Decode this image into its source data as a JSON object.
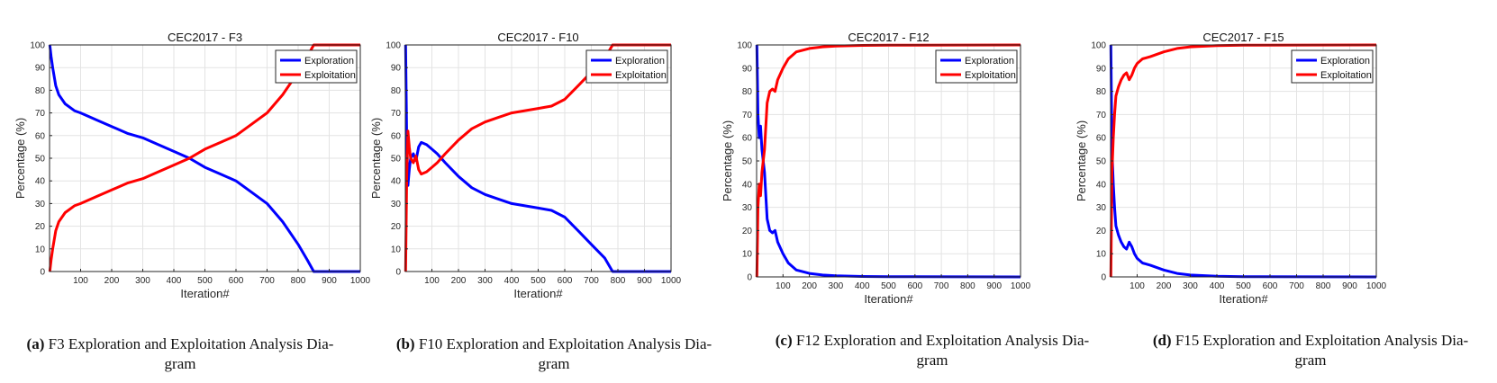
{
  "chart_data": [
    {
      "type": "line",
      "title": "CEC2017 - F3",
      "xlabel": "Iteration#",
      "ylabel": "Percentage (%)",
      "xlim": [
        0,
        1000
      ],
      "ylim": [
        0,
        100
      ],
      "xticks": [
        "100",
        "200",
        "300",
        "400",
        "500",
        "600",
        "700",
        "800",
        "900",
        "1000"
      ],
      "yticks": [
        "0",
        "10",
        "20",
        "30",
        "40",
        "50",
        "60",
        "70",
        "80",
        "90",
        "100"
      ],
      "grid": true,
      "legend_position": "top-right",
      "series": [
        {
          "name": "Exploration",
          "color": "#0000ff",
          "x": [
            1,
            5,
            10,
            20,
            30,
            50,
            80,
            100,
            150,
            200,
            250,
            300,
            350,
            400,
            450,
            500,
            550,
            600,
            650,
            700,
            750,
            800,
            830,
            850,
            900,
            1000
          ],
          "y": [
            100,
            95,
            90,
            82,
            78,
            74,
            71,
            70,
            67,
            64,
            61,
            59,
            56,
            53,
            50,
            46,
            43,
            40,
            35,
            30,
            22,
            12,
            5,
            0,
            0,
            0
          ]
        },
        {
          "name": "Exploitation",
          "color": "#ff0000",
          "x": [
            1,
            5,
            10,
            20,
            30,
            50,
            80,
            100,
            150,
            200,
            250,
            300,
            350,
            400,
            450,
            500,
            550,
            600,
            650,
            700,
            750,
            800,
            830,
            850,
            900,
            1000
          ],
          "y": [
            0,
            5,
            10,
            18,
            22,
            26,
            29,
            30,
            33,
            36,
            39,
            41,
            44,
            47,
            50,
            54,
            57,
            60,
            65,
            70,
            78,
            88,
            95,
            100,
            100,
            100
          ]
        }
      ]
    },
    {
      "type": "line",
      "title": "CEC2017 - F10",
      "xlabel": "Iteration#",
      "ylabel": "Percentage (%)",
      "xlim": [
        0,
        1000
      ],
      "ylim": [
        0,
        100
      ],
      "xticks": [
        "100",
        "200",
        "300",
        "400",
        "500",
        "600",
        "700",
        "800",
        "900",
        "1000"
      ],
      "yticks": [
        "0",
        "10",
        "20",
        "30",
        "40",
        "50",
        "60",
        "70",
        "80",
        "90",
        "100"
      ],
      "grid": true,
      "legend_position": "top-right",
      "series": [
        {
          "name": "Exploration",
          "color": "#0000ff",
          "x": [
            1,
            5,
            10,
            15,
            20,
            30,
            40,
            50,
            60,
            80,
            100,
            120,
            150,
            200,
            250,
            300,
            350,
            400,
            450,
            500,
            550,
            600,
            650,
            700,
            750,
            780,
            800,
            900,
            1000
          ],
          "y": [
            100,
            60,
            38,
            45,
            50,
            52,
            49,
            55,
            57,
            56,
            54,
            52,
            48,
            42,
            37,
            34,
            32,
            30,
            29,
            28,
            27,
            24,
            18,
            12,
            6,
            0,
            0,
            0,
            0
          ]
        },
        {
          "name": "Exploitation",
          "color": "#ff0000",
          "x": [
            1,
            5,
            10,
            15,
            20,
            30,
            40,
            50,
            60,
            80,
            100,
            120,
            150,
            200,
            250,
            300,
            350,
            400,
            450,
            500,
            550,
            600,
            650,
            700,
            750,
            780,
            800,
            900,
            1000
          ],
          "y": [
            0,
            40,
            62,
            55,
            50,
            48,
            51,
            45,
            43,
            44,
            46,
            48,
            52,
            58,
            63,
            66,
            68,
            70,
            71,
            72,
            73,
            76,
            82,
            88,
            94,
            100,
            100,
            100,
            100
          ]
        }
      ]
    },
    {
      "type": "line",
      "title": "CEC2017 - F12",
      "xlabel": "Iteration#",
      "ylabel": "Percentage (%)",
      "xlim": [
        0,
        1000
      ],
      "ylim": [
        0,
        100
      ],
      "xticks": [
        "100",
        "200",
        "300",
        "400",
        "500",
        "600",
        "700",
        "800",
        "900",
        "1000"
      ],
      "yticks": [
        "0",
        "10",
        "20",
        "30",
        "40",
        "50",
        "60",
        "70",
        "80",
        "90",
        "100"
      ],
      "grid": true,
      "legend_position": "top-right",
      "series": [
        {
          "name": "Exploration",
          "color": "#0000ff",
          "x": [
            1,
            5,
            10,
            15,
            20,
            30,
            40,
            50,
            60,
            70,
            80,
            100,
            120,
            150,
            200,
            250,
            300,
            400,
            500,
            1000
          ],
          "y": [
            100,
            70,
            60,
            65,
            55,
            45,
            25,
            20,
            19,
            20,
            15,
            10,
            6,
            3,
            1.5,
            0.8,
            0.5,
            0.2,
            0.1,
            0
          ]
        },
        {
          "name": "Exploitation",
          "color": "#ff0000",
          "x": [
            1,
            5,
            10,
            15,
            20,
            30,
            40,
            50,
            60,
            70,
            80,
            100,
            120,
            150,
            200,
            250,
            300,
            400,
            500,
            1000
          ],
          "y": [
            0,
            30,
            40,
            35,
            45,
            55,
            75,
            80,
            81,
            80,
            85,
            90,
            94,
            97,
            98.5,
            99.2,
            99.5,
            99.8,
            99.9,
            100
          ]
        }
      ]
    },
    {
      "type": "line",
      "title": "CEC2017 - F15",
      "xlabel": "Iteration#",
      "ylabel": "Percentage (%)",
      "xlim": [
        0,
        1000
      ],
      "ylim": [
        0,
        100
      ],
      "xticks": [
        "100",
        "200",
        "300",
        "400",
        "500",
        "600",
        "700",
        "800",
        "900",
        "1000"
      ],
      "yticks": [
        "0",
        "10",
        "20",
        "30",
        "40",
        "50",
        "60",
        "70",
        "80",
        "90",
        "100"
      ],
      "grid": true,
      "legend_position": "top-right",
      "series": [
        {
          "name": "Exploration",
          "color": "#0000ff",
          "x": [
            1,
            5,
            10,
            15,
            20,
            30,
            40,
            50,
            60,
            70,
            80,
            90,
            100,
            120,
            150,
            200,
            250,
            300,
            400,
            500,
            1000
          ],
          "y": [
            100,
            55,
            40,
            30,
            22,
            18,
            15,
            13,
            12,
            15,
            13,
            10,
            8,
            6,
            5,
            3,
            1.5,
            0.8,
            0.3,
            0.1,
            0
          ]
        },
        {
          "name": "Exploitation",
          "color": "#ff0000",
          "x": [
            1,
            5,
            10,
            15,
            20,
            30,
            40,
            50,
            60,
            70,
            80,
            90,
            100,
            120,
            150,
            200,
            250,
            300,
            400,
            500,
            1000
          ],
          "y": [
            0,
            45,
            60,
            70,
            78,
            82,
            85,
            87,
            88,
            85,
            87,
            90,
            92,
            94,
            95,
            97,
            98.5,
            99.2,
            99.7,
            99.9,
            100
          ]
        }
      ]
    }
  ],
  "captions": [
    {
      "label": "(a)",
      "text": " F3 Exploration and Exploitation Analysis Dia-",
      "line2": "gram"
    },
    {
      "label": "(b)",
      "text": " F10 Exploration and Exploitation Analysis Dia-",
      "line2": "gram"
    },
    {
      "label": "(c)",
      "text": " F12 Exploration and Exploitation Analysis Dia-",
      "line2": "gram"
    },
    {
      "label": "(d)",
      "text": " F15 Exploration and Exploitation Analysis Dia-",
      "line2": "gram"
    }
  ]
}
